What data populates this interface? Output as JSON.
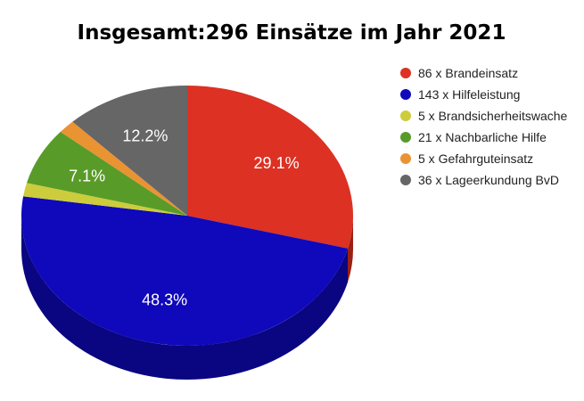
{
  "chart_data": {
    "type": "pie",
    "title": "Insgesamt:296 Einsätze im Jahr 2021",
    "total": 296,
    "start_angle_deg": 0,
    "slices": [
      {
        "label": "86 x Brandeinsatz",
        "value": 86,
        "color": "#dc3123",
        "side_color": "#9b1f14",
        "percent_label": "29.1%"
      },
      {
        "label": "143 x Hilfeleistung",
        "value": 143,
        "color": "#1008bb",
        "side_color": "#0a0580",
        "percent_label": "48.3%"
      },
      {
        "label": "5 x Brandsicherheitswache",
        "value": 5,
        "color": "#cccc3c",
        "side_color": "#8e8e28",
        "percent_label": ""
      },
      {
        "label": "21 x Nachbarliche Hilfe",
        "value": 21,
        "color": "#599b28",
        "side_color": "#3d6b1b",
        "percent_label": "7.1%"
      },
      {
        "label": "5 x Gefahrguteinsatz",
        "value": 5,
        "color": "#ea9333",
        "side_color": "#a56622",
        "percent_label": ""
      },
      {
        "label": "36 x Lageerkundung BvD",
        "value": 36,
        "color": "#666666",
        "side_color": "#444444",
        "percent_label": "12.2%"
      }
    ],
    "legend_position": "right",
    "style": "3d"
  }
}
